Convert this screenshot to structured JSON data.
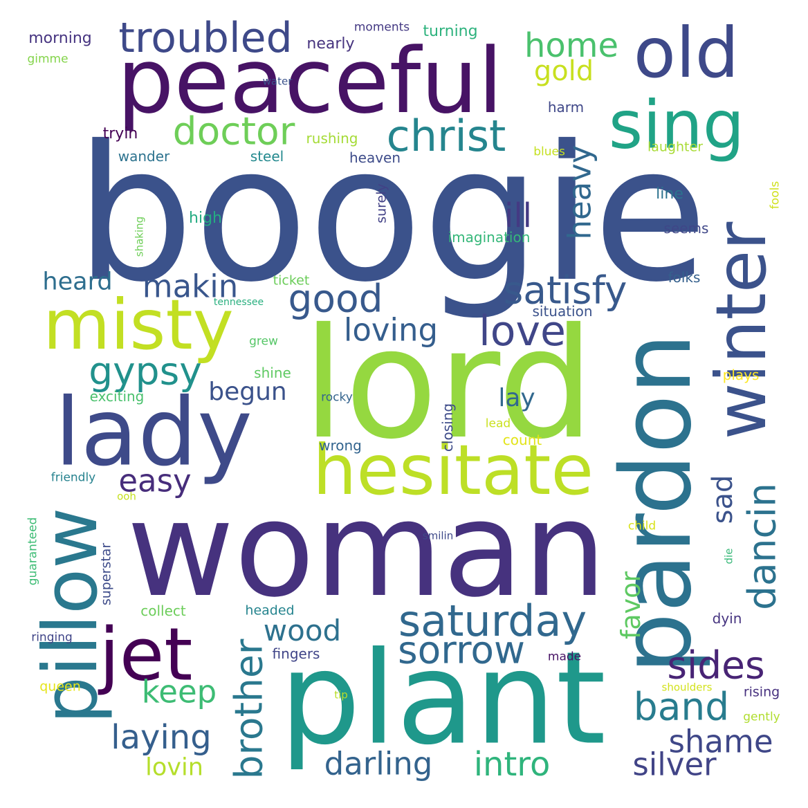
{
  "words": [
    {
      "text": "boogie",
      "color": "#3b528b"
    },
    {
      "text": "lord",
      "color": "#95d840"
    },
    {
      "text": "woman",
      "color": "#46327e"
    },
    {
      "text": "plant",
      "color": "#1f988b"
    },
    {
      "text": "peaceful",
      "color": "#471365"
    },
    {
      "text": "pardon",
      "color": "#2c728e"
    },
    {
      "text": "hesitate",
      "color": "#bddf26"
    },
    {
      "text": "lady",
      "color": "#3e4a89"
    },
    {
      "text": "pillow",
      "color": "#2a788e"
    },
    {
      "text": "misty",
      "color": "#c2df23"
    },
    {
      "text": "winter",
      "color": "#3b528b"
    },
    {
      "text": "old",
      "color": "#3e4989"
    },
    {
      "text": "sing",
      "color": "#20a386"
    },
    {
      "text": "jet",
      "color": "#440154"
    },
    {
      "text": "troubled",
      "color": "#3e4989"
    },
    {
      "text": "saturday",
      "color": "#31688e"
    },
    {
      "text": "christ",
      "color": "#25858e"
    },
    {
      "text": "doctor",
      "color": "#6ece58"
    },
    {
      "text": "sorrow",
      "color": "#31688e"
    },
    {
      "text": "good",
      "color": "#38598c"
    },
    {
      "text": "love",
      "color": "#404688"
    },
    {
      "text": "satisfy",
      "color": "#38598c"
    },
    {
      "text": "gypsy",
      "color": "#21918c"
    },
    {
      "text": "dancin",
      "color": "#2c728e"
    },
    {
      "text": "sides",
      "color": "#482475"
    },
    {
      "text": "band",
      "color": "#287c8e"
    },
    {
      "text": "brother",
      "color": "#2a788e"
    },
    {
      "text": "home",
      "color": "#4ac16d"
    },
    {
      "text": "laying",
      "color": "#355f8d"
    },
    {
      "text": "intro",
      "color": "#2fb47c"
    },
    {
      "text": "darling",
      "color": "#33638d"
    },
    {
      "text": "silver",
      "color": "#414487"
    },
    {
      "text": "makin",
      "color": "#39568c"
    },
    {
      "text": "loving",
      "color": "#355e8d"
    },
    {
      "text": "shame",
      "color": "#3f4788"
    },
    {
      "text": "easy",
      "color": "#472d7b"
    },
    {
      "text": "keep",
      "color": "#3dbc74"
    },
    {
      "text": "heavy",
      "color": "#31688e"
    },
    {
      "text": "ill",
      "color": "#443a83"
    },
    {
      "text": "wood",
      "color": "#2d718e"
    },
    {
      "text": "gold",
      "color": "#c8e020"
    },
    {
      "text": "sad",
      "color": "#3b528b"
    },
    {
      "text": "favor",
      "color": "#5ec962"
    },
    {
      "text": "begun",
      "color": "#3b528b"
    },
    {
      "text": "lay",
      "color": "#31688e"
    },
    {
      "text": "heard",
      "color": "#2e6e8e"
    },
    {
      "text": "lovin",
      "color": "#b5de2b"
    },
    {
      "text": "tryin",
      "color": "#440154"
    },
    {
      "text": "morning",
      "color": "#463480"
    },
    {
      "text": "nearly",
      "color": "#46337e"
    },
    {
      "text": "moments",
      "color": "#443983"
    },
    {
      "text": "turning",
      "color": "#2db27d"
    },
    {
      "text": "gimme",
      "color": "#84d44b"
    },
    {
      "text": "water",
      "color": "#3b528b"
    },
    {
      "text": "harm",
      "color": "#3f4788"
    },
    {
      "text": "rushing",
      "color": "#a5db36"
    },
    {
      "text": "wander",
      "color": "#2c728e"
    },
    {
      "text": "steel",
      "color": "#23898e"
    },
    {
      "text": "heaven",
      "color": "#3e4c8a"
    },
    {
      "text": "blues",
      "color": "#c5e021"
    },
    {
      "text": "laughter",
      "color": "#a8db34"
    },
    {
      "text": "surely",
      "color": "#424186"
    },
    {
      "text": "high",
      "color": "#25ac82"
    },
    {
      "text": "line",
      "color": "#2c728e"
    },
    {
      "text": "fools",
      "color": "#d0e11c"
    },
    {
      "text": "imagination",
      "color": "#35b779"
    },
    {
      "text": "seems",
      "color": "#3f4788"
    },
    {
      "text": "shaking",
      "color": "#6ece58"
    },
    {
      "text": "ticket",
      "color": "#6ccd5a"
    },
    {
      "text": "folks",
      "color": "#35608d"
    },
    {
      "text": "tennessee",
      "color": "#29af7f"
    },
    {
      "text": "situation",
      "color": "#3b528b"
    },
    {
      "text": "grew",
      "color": "#56c667"
    },
    {
      "text": "shine",
      "color": "#5ec962"
    },
    {
      "text": "plays",
      "color": "#fde725"
    },
    {
      "text": "exciting",
      "color": "#4ac16d"
    },
    {
      "text": "rocky",
      "color": "#33638d"
    },
    {
      "text": "closing",
      "color": "#3e4c8a"
    },
    {
      "text": "lead",
      "color": "#cae11f"
    },
    {
      "text": "count",
      "color": "#e2e418"
    },
    {
      "text": "wrong",
      "color": "#32648e"
    },
    {
      "text": "friendly",
      "color": "#26828e"
    },
    {
      "text": "ooh",
      "color": "#c5e021"
    },
    {
      "text": "guaranteed",
      "color": "#3dbc74"
    },
    {
      "text": "child",
      "color": "#d8e219"
    },
    {
      "text": "smilin",
      "color": "#3e4989"
    },
    {
      "text": "die",
      "color": "#37b878"
    },
    {
      "text": "superstar",
      "color": "#3e4c8a"
    },
    {
      "text": "collect",
      "color": "#6ccd5a"
    },
    {
      "text": "headed",
      "color": "#25848e"
    },
    {
      "text": "dyin",
      "color": "#463480"
    },
    {
      "text": "ringing",
      "color": "#404588"
    },
    {
      "text": "fingers",
      "color": "#404588"
    },
    {
      "text": "made",
      "color": "#471365"
    },
    {
      "text": "queen",
      "color": "#e5e419"
    },
    {
      "text": "tip",
      "color": "#b8de29"
    },
    {
      "text": "shoulders",
      "color": "#d2e21b"
    },
    {
      "text": "rising",
      "color": "#46307e"
    },
    {
      "text": "gently",
      "color": "#b0dd2f"
    }
  ]
}
